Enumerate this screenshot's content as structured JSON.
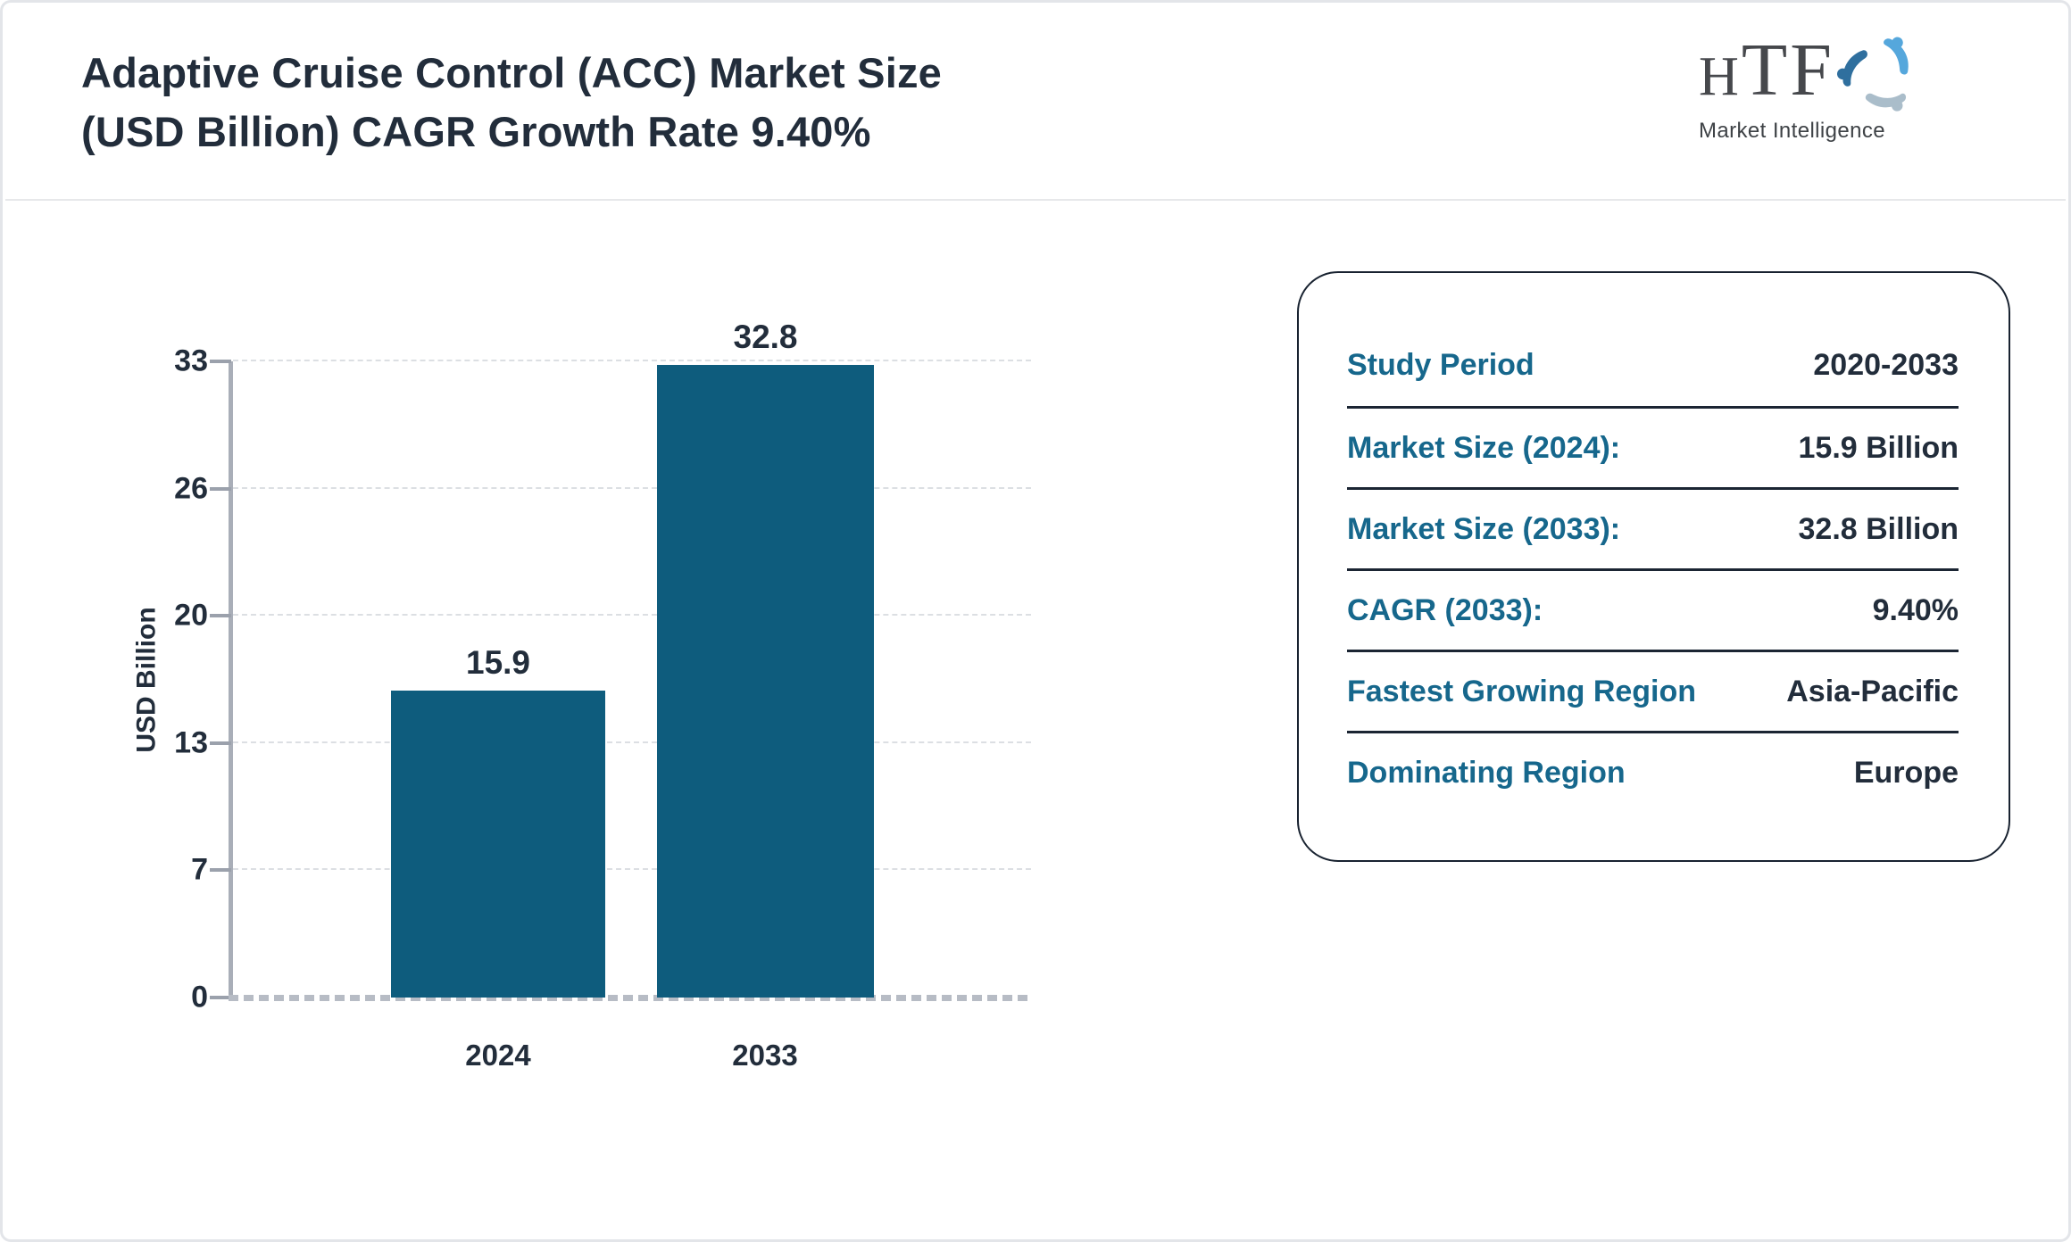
{
  "page": {
    "title_line1": "Adaptive Cruise Control (ACC) Market Size",
    "title_line2": "(USD Billion) CAGR Growth Rate 9.40%"
  },
  "logo": {
    "htf_small": "H",
    "htf_rest": "TF",
    "subtitle": "Market Intelligence",
    "colors": {
      "light_blue": "#55a7dc",
      "gray_blue": "#aabdca",
      "dark_blue": "#2f6f9e",
      "text": "#46484c"
    }
  },
  "chart_data": {
    "type": "bar",
    "categories": [
      "2024",
      "2033"
    ],
    "values": [
      15.9,
      32.8
    ],
    "value_labels": [
      "15.9",
      "32.8"
    ],
    "title": "",
    "xlabel": "",
    "ylabel": "USD Billion",
    "ylim": [
      0,
      33
    ],
    "yticks": [
      0,
      7,
      13,
      20,
      26,
      33
    ],
    "ytick_labels": [
      "0",
      "7",
      "13",
      "20",
      "26",
      "33"
    ],
    "grid": "horizontal-dashed",
    "legend": "none",
    "bar_color": "#0e5c7d"
  },
  "info_panel": {
    "label_color": "#16678c",
    "value_color": "#222d3b",
    "rows": [
      {
        "label": "Study Period",
        "value": "2020-2033"
      },
      {
        "label": "Market Size (2024):",
        "value": "15.9 Billion"
      },
      {
        "label": "Market Size (2033):",
        "value": "32.8 Billion"
      },
      {
        "label": "CAGR (2033):",
        "value": "9.40%"
      },
      {
        "label": "Fastest Growing Region",
        "value": "Asia-Pacific"
      },
      {
        "label": "Dominating Region",
        "value": "Europe"
      }
    ]
  }
}
